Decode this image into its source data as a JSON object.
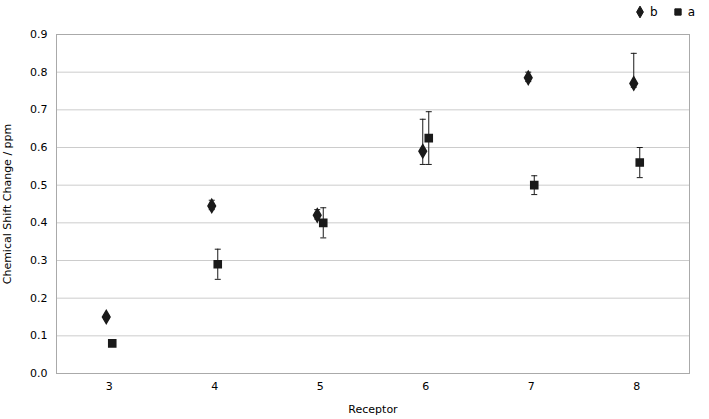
{
  "chart_data": {
    "type": "scatter",
    "xlabel": "Receptor",
    "ylabel": "Chemical Shift Change / ppm",
    "x": [
      3,
      4,
      5,
      6,
      7,
      8
    ],
    "series": [
      {
        "name": "b",
        "color": "#1a1a1a",
        "marker": "diamond",
        "values": [
          0.15,
          0.445,
          0.42,
          0.59,
          0.785,
          0.77
        ],
        "yerr_lower": [
          0.005,
          0.01,
          0.01,
          0.035,
          0.01,
          0.01
        ],
        "yerr_upper": [
          0.005,
          0.015,
          0.015,
          0.085,
          0.015,
          0.08
        ]
      },
      {
        "name": "a",
        "color": "#1a1a1a",
        "marker": "square",
        "values": [
          0.08,
          0.29,
          0.4,
          0.625,
          0.5,
          0.56
        ],
        "yerr_lower": [
          0.008,
          0.04,
          0.04,
          0.07,
          0.025,
          0.04
        ],
        "yerr_upper": [
          0.008,
          0.04,
          0.04,
          0.07,
          0.025,
          0.04
        ]
      }
    ],
    "xlim": [
      2.5,
      8.5
    ],
    "xticks": [
      3,
      4,
      5,
      6,
      7,
      8
    ],
    "ylim": [
      0.0,
      0.9
    ],
    "yticks": [
      {
        "value": 0.0,
        "label": "0.0"
      },
      0.1,
      0.2,
      0.3,
      0.4,
      0.5,
      0.6,
      0.7,
      0.8,
      0.9
    ],
    "grid": true,
    "legend": "upper right"
  }
}
